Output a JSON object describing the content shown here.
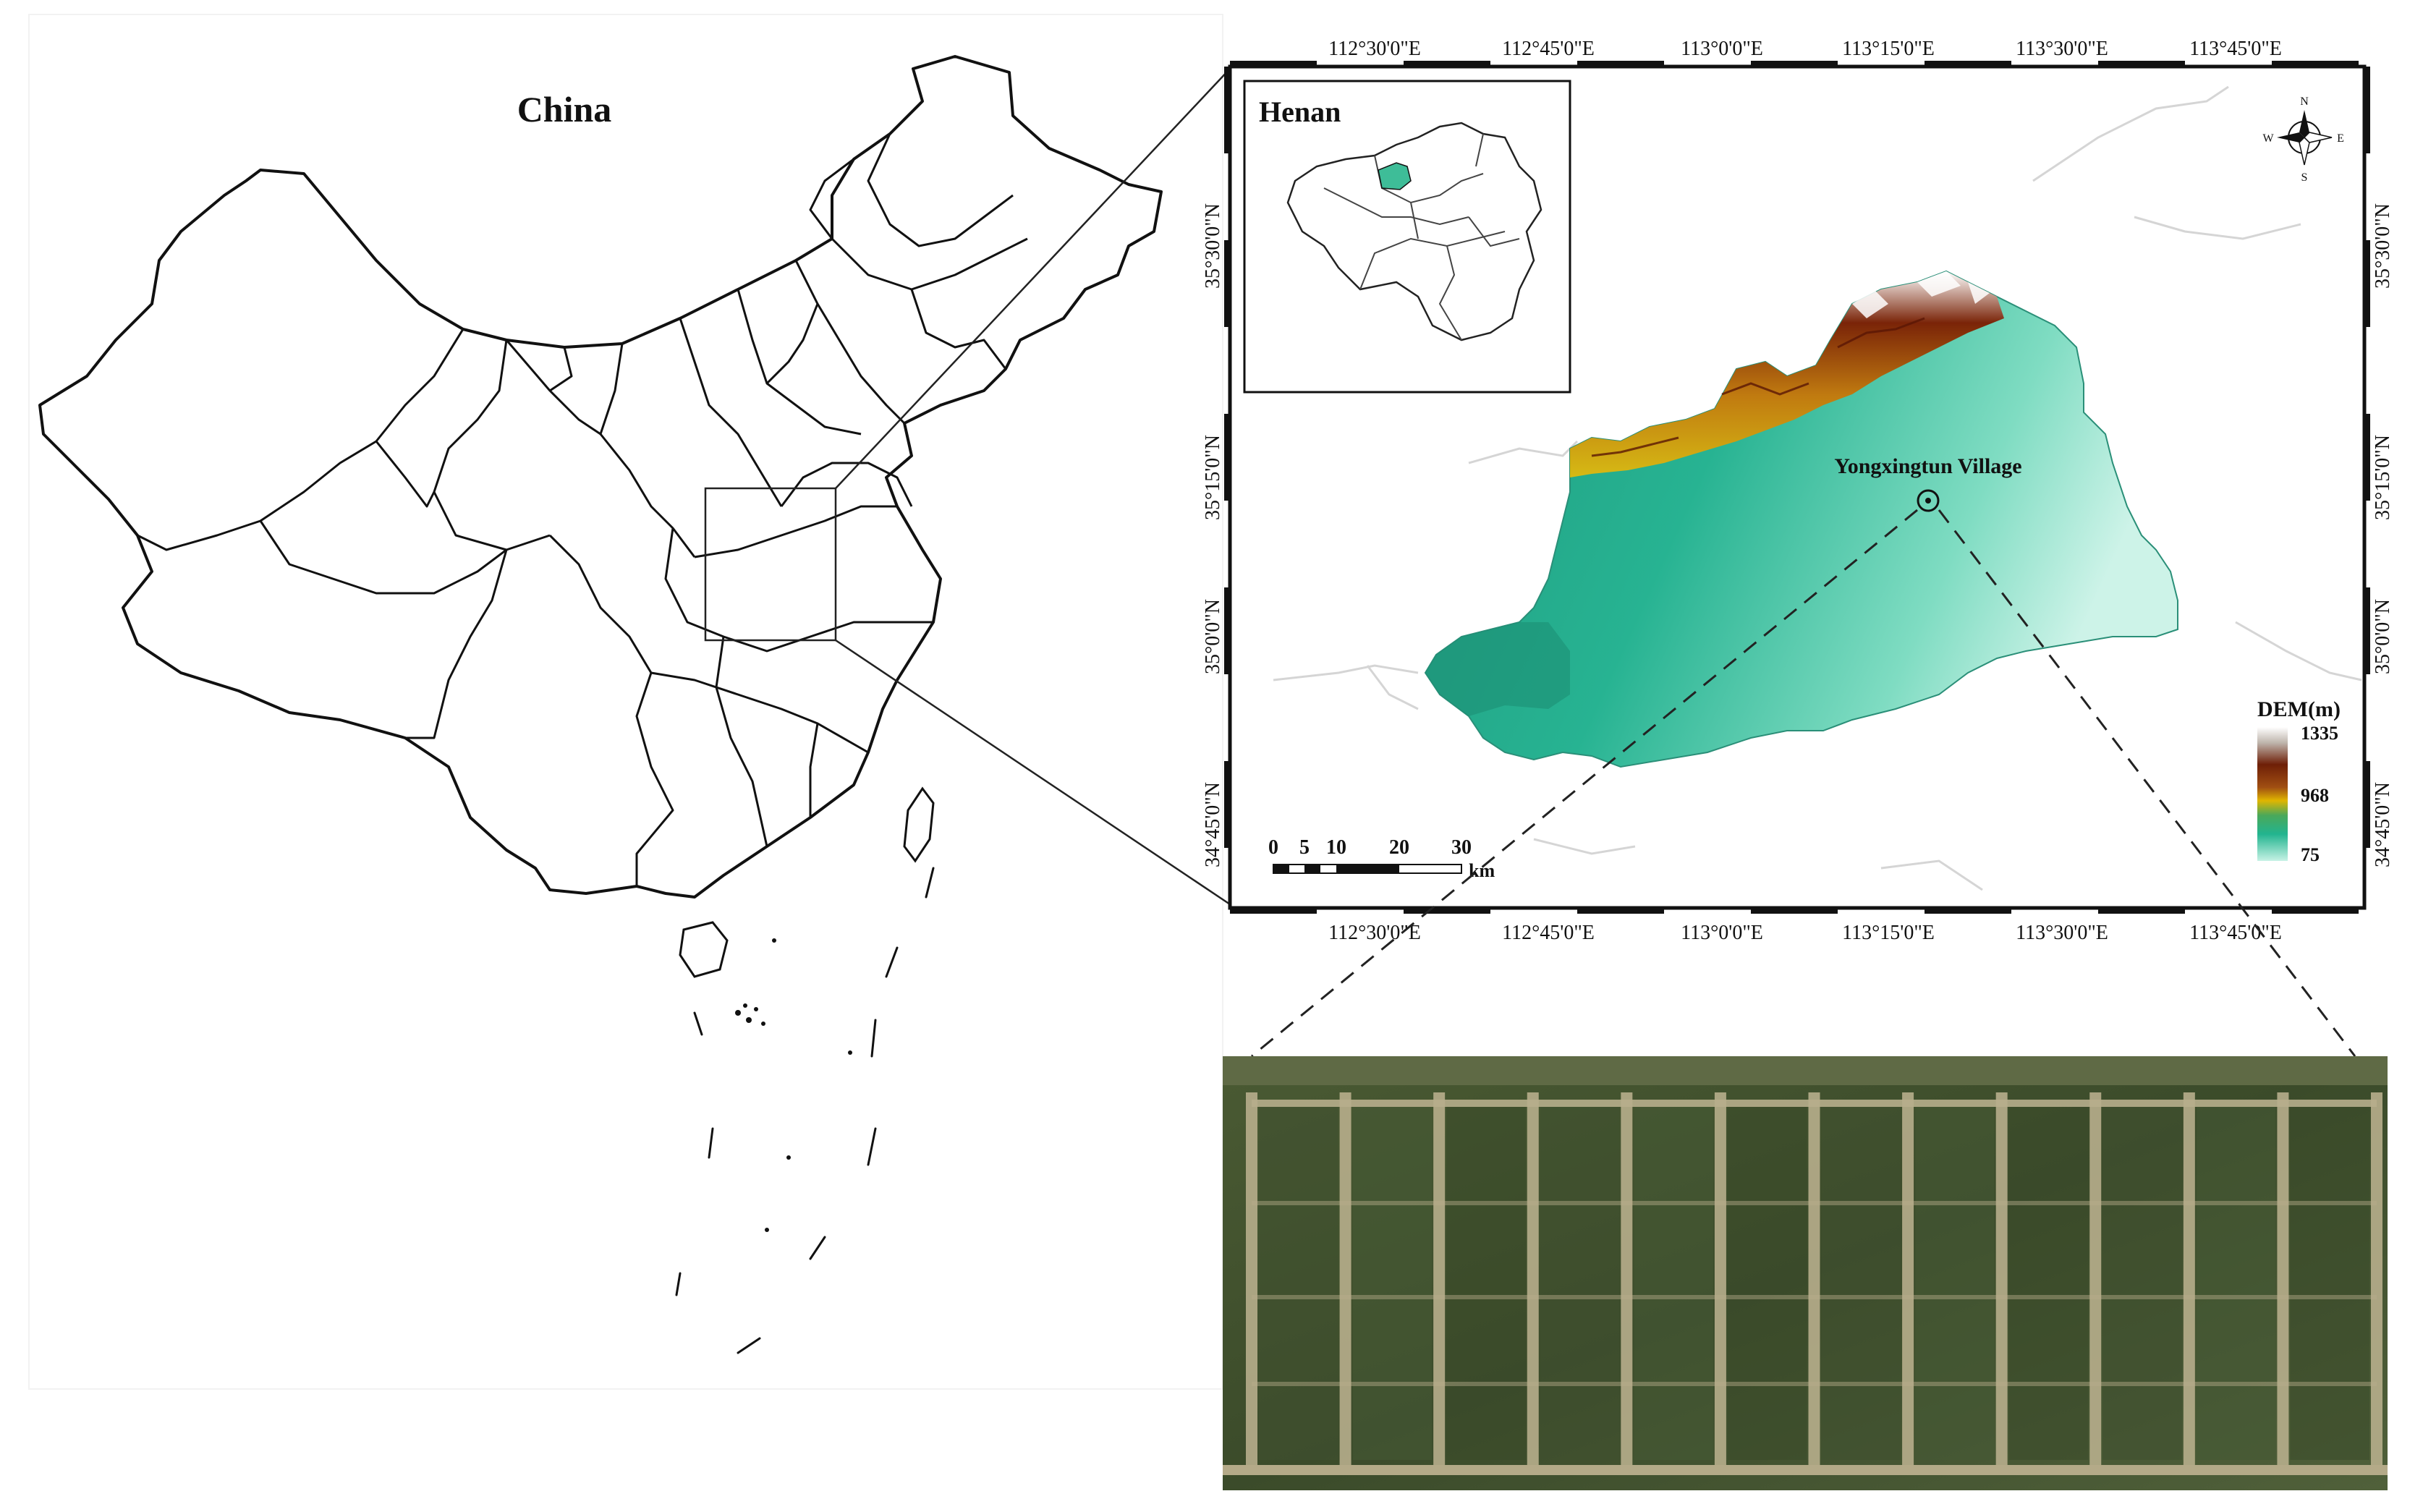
{
  "china_map": {
    "title": "China"
  },
  "henan_inset": {
    "title": "Henan"
  },
  "study_area_map": {
    "lon_ticks": [
      "112°30'0\"E",
      "112°45'0\"E",
      "113°0'0\"E",
      "113°15'0\"E",
      "113°30'0\"E",
      "113°45'0\"E"
    ],
    "lat_ticks": [
      "35°30'0\"N",
      "35°15'0\"N",
      "35°0'0\"N",
      "34°45'0\"N"
    ],
    "site_label": "Yongxingtun Village",
    "north_arrow": {
      "n": "N",
      "s": "S",
      "e": "E",
      "w": "W"
    },
    "scale_bar": {
      "ticks": [
        "0",
        "5",
        "10",
        "20",
        "30"
      ],
      "unit": "km"
    },
    "legend": {
      "title": "DEM(m)",
      "max": "1335",
      "mid": "968",
      "min": "75",
      "colors": [
        "#ffffff",
        "#b8a89a",
        "#6e1f07",
        "#9a4a12",
        "#d8b000",
        "#3aa36f",
        "#2ab793",
        "#bff0e0"
      ]
    }
  },
  "colors": {
    "border": "#111111",
    "dem_low": "#4fcfae",
    "dem_mid": "#1fa88a",
    "dem_high": "#7a2408",
    "field_green": "#40512c",
    "field_path": "#b7ae8c"
  }
}
